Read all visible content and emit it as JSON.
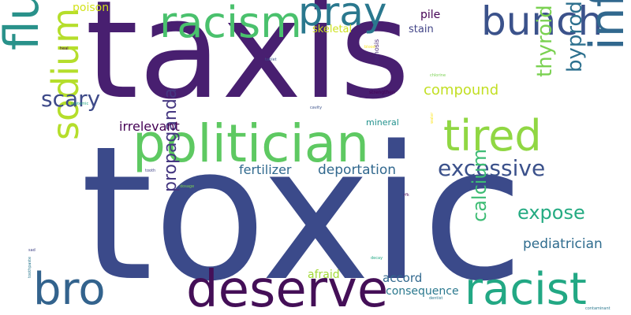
{
  "words": [
    {
      "text": "taxis",
      "color": "#481f70"
    },
    {
      "text": "toxic",
      "color": "#3b4a8a"
    },
    {
      "text": "politician",
      "color": "#5ec962"
    },
    {
      "text": "fluorosis",
      "color": "#29918a"
    },
    {
      "text": "deserve",
      "color": "#440f57"
    },
    {
      "text": "racism",
      "color": "#4ac16d"
    },
    {
      "text": "pray",
      "color": "#2a788e"
    },
    {
      "text": "bunch",
      "color": "#3b528b"
    },
    {
      "text": "inflation",
      "color": "#31688e"
    },
    {
      "text": "tired",
      "color": "#90d743"
    },
    {
      "text": "racist",
      "color": "#22a884"
    },
    {
      "text": "bro",
      "color": "#33638d"
    },
    {
      "text": "sodium",
      "color": "#b5de2b"
    },
    {
      "text": "scary",
      "color": "#3e4a89"
    },
    {
      "text": "excessive",
      "color": "#3b518b"
    },
    {
      "text": "byproduct",
      "color": "#2d708e"
    },
    {
      "text": "thyroid",
      "color": "#7ad151"
    },
    {
      "text": "expose",
      "color": "#25ab82"
    },
    {
      "text": "calcium",
      "color": "#3dbc74"
    },
    {
      "text": "propaganda",
      "color": "#453781"
    },
    {
      "text": "pediatrician",
      "color": "#2f6c8e"
    },
    {
      "text": "deportation",
      "color": "#31688e"
    },
    {
      "text": "compound",
      "color": "#c2df23"
    },
    {
      "text": "fertilizer",
      "color": "#30698e"
    },
    {
      "text": "irrelevant",
      "color": "#440154"
    },
    {
      "text": "accord",
      "color": "#31688e"
    },
    {
      "text": "consequence",
      "color": "#2a788e"
    },
    {
      "text": "afraid",
      "color": "#a2da37"
    },
    {
      "text": "poison",
      "color": "#d2e21b"
    },
    {
      "text": "skeletal",
      "color": "#cde11d"
    },
    {
      "text": "pile",
      "color": "#440154"
    },
    {
      "text": "stain",
      "color": "#414487"
    },
    {
      "text": "mineral",
      "color": "#21918c"
    },
    {
      "text": "osmosis",
      "color": "#482878"
    },
    {
      "text": "strengthen",
      "color": "#440154"
    },
    {
      "text": "chlorine",
      "color": "#7ad151"
    },
    {
      "text": "cavity",
      "color": "#3b528b"
    },
    {
      "text": "systemic",
      "color": "#22a884"
    },
    {
      "text": "tablet",
      "color": "#3b528b"
    },
    {
      "text": "tooth",
      "color": "#414487"
    },
    {
      "text": "heal",
      "color": "#440154"
    },
    {
      "text": "blood",
      "color": "#fde725"
    },
    {
      "text": "dosage",
      "color": "#7ad151"
    },
    {
      "text": "rfk",
      "color": "#440154"
    },
    {
      "text": "sad",
      "color": "#414487"
    },
    {
      "text": "toothpaste",
      "color": "#2a788e"
    },
    {
      "text": "decay",
      "color": "#22a884"
    },
    {
      "text": "dentist",
      "color": "#2a788e"
    },
    {
      "text": "contaminant",
      "color": "#2a788e"
    },
    {
      "text": "water",
      "color": "#fde725"
    }
  ]
}
